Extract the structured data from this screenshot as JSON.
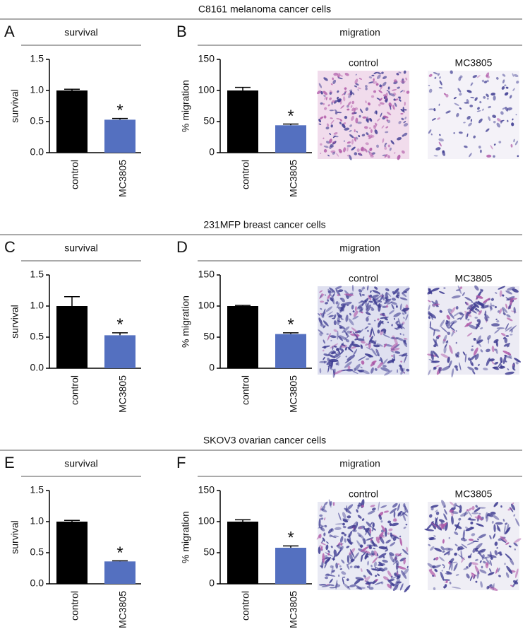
{
  "sections": [
    {
      "title": "C8161 melanoma cancer cells",
      "images": [
        "control",
        "MC3805"
      ]
    },
    {
      "title": "231MFP breast cancer cells",
      "images": [
        "control",
        "MC3805"
      ]
    },
    {
      "title": "SKOV3 ovarian cancer cells",
      "images": [
        "control",
        "MC3805"
      ]
    }
  ],
  "chart_data": [
    {
      "type": "bar",
      "panel": "A",
      "title": "survival",
      "ylabel": "survival",
      "categories": [
        "control",
        "MC3805"
      ],
      "values": [
        1.0,
        0.53
      ],
      "errors": [
        0.02,
        0.02
      ],
      "colors": [
        "#000000",
        "#5470c0"
      ],
      "annotation": "*",
      "ylim": [
        0,
        1.5
      ],
      "yticks": [
        {
          "value": 0,
          "label": "0.0"
        },
        0.5,
        {
          "value": 1,
          "label": "1.0"
        },
        1.5
      ]
    },
    {
      "type": "bar",
      "panel": "B",
      "title": "migration",
      "ylabel": "% migration",
      "categories": [
        "control",
        "MC3805"
      ],
      "values": [
        100,
        44
      ],
      "errors": [
        5,
        2
      ],
      "colors": [
        "#000000",
        "#5470c0"
      ],
      "annotation": "*",
      "ylim": [
        0,
        150
      ],
      "yticks": [
        0,
        50,
        100,
        150
      ]
    },
    {
      "type": "bar",
      "panel": "C",
      "title": "survival",
      "ylabel": "survival",
      "categories": [
        "control",
        "MC3805"
      ],
      "values": [
        1.0,
        0.53
      ],
      "errors": [
        0.15,
        0.04
      ],
      "colors": [
        "#000000",
        "#5470c0"
      ],
      "annotation": "*",
      "ylim": [
        0,
        1.5
      ],
      "yticks": [
        {
          "value": 0,
          "label": "0.0"
        },
        0.5,
        {
          "value": 1,
          "label": "1.0"
        },
        1.5
      ]
    },
    {
      "type": "bar",
      "panel": "D",
      "title": "migration",
      "ylabel": "% migration",
      "categories": [
        "control",
        "MC3805"
      ],
      "values": [
        100,
        55
      ],
      "errors": [
        1,
        2
      ],
      "colors": [
        "#000000",
        "#5470c0"
      ],
      "annotation": "*",
      "ylim": [
        0,
        150
      ],
      "yticks": [
        0,
        50,
        100,
        150
      ]
    },
    {
      "type": "bar",
      "panel": "E",
      "title": "survival",
      "ylabel": "survival",
      "categories": [
        "control",
        "MC3805"
      ],
      "values": [
        1.0,
        0.36
      ],
      "errors": [
        0.02,
        0.01
      ],
      "colors": [
        "#000000",
        "#5470c0"
      ],
      "annotation": "*",
      "ylim": [
        0,
        1.5
      ],
      "yticks": [
        {
          "value": 0,
          "label": "0.0"
        },
        0.5,
        {
          "value": 1,
          "label": "1.0"
        },
        1.5
      ]
    },
    {
      "type": "bar",
      "panel": "F",
      "title": "migration",
      "ylabel": "% migration",
      "categories": [
        "control",
        "MC3805"
      ],
      "values": [
        100,
        58
      ],
      "errors": [
        3,
        3
      ],
      "colors": [
        "#000000",
        "#5470c0"
      ],
      "annotation": "*",
      "ylim": [
        0,
        150
      ],
      "yticks": [
        0,
        50,
        100,
        150
      ]
    }
  ]
}
